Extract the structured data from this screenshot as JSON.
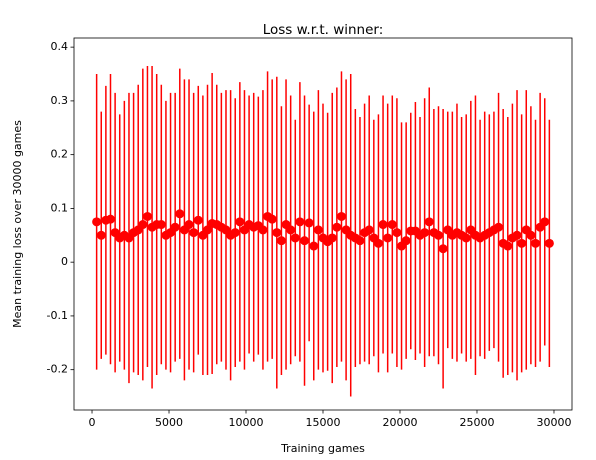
{
  "chart_data": {
    "type": "errorbar",
    "title": "Loss w.r.t. winner:",
    "xlabel": "Training games",
    "ylabel": "Mean training loss over 30000 games",
    "color": "#ff0000",
    "x": [
      300,
      600,
      900,
      1200,
      1500,
      1800,
      2100,
      2400,
      2700,
      3000,
      3300,
      3600,
      3900,
      4200,
      4500,
      4800,
      5100,
      5400,
      5700,
      6000,
      6300,
      6600,
      6900,
      7200,
      7500,
      7800,
      8100,
      8400,
      8700,
      9000,
      9300,
      9600,
      9900,
      10200,
      10500,
      10800,
      11100,
      11400,
      11700,
      12000,
      12300,
      12600,
      12900,
      13200,
      13500,
      13800,
      14100,
      14400,
      14700,
      15000,
      15300,
      15600,
      15900,
      16200,
      16500,
      16800,
      17100,
      17400,
      17700,
      18000,
      18300,
      18600,
      18900,
      19200,
      19500,
      19800,
      20100,
      20400,
      20700,
      21000,
      21300,
      21600,
      21900,
      22200,
      22500,
      22800,
      23100,
      23400,
      23700,
      24000,
      24300,
      24600,
      24900,
      25200,
      25500,
      25800,
      26100,
      26400,
      26700,
      27000,
      27300,
      27600,
      27900,
      28200,
      28500,
      28800,
      29100,
      29400,
      29700
    ],
    "values": [
      0.075,
      0.05,
      0.078,
      0.08,
      0.055,
      0.045,
      0.05,
      0.045,
      0.055,
      0.06,
      0.07,
      0.085,
      0.065,
      0.07,
      0.07,
      0.05,
      0.055,
      0.065,
      0.09,
      0.06,
      0.07,
      0.055,
      0.078,
      0.05,
      0.06,
      0.072,
      0.07,
      0.065,
      0.06,
      0.05,
      0.055,
      0.075,
      0.06,
      0.07,
      0.065,
      0.068,
      0.06,
      0.085,
      0.08,
      0.055,
      0.04,
      0.07,
      0.06,
      0.045,
      0.075,
      0.04,
      0.073,
      0.03,
      0.06,
      0.045,
      0.038,
      0.045,
      0.065,
      0.085,
      0.06,
      0.05,
      0.045,
      0.04,
      0.055,
      0.06,
      0.045,
      0.035,
      0.07,
      0.045,
      0.07,
      0.055,
      0.03,
      0.04,
      0.058,
      0.058,
      0.05,
      0.055,
      0.075,
      0.055,
      0.05,
      0.025,
      0.06,
      0.05,
      0.055,
      0.05,
      0.045,
      0.06,
      0.05,
      0.045,
      0.05,
      0.055,
      0.06,
      0.065,
      0.035,
      0.03,
      0.045,
      0.05,
      0.035,
      0.06,
      0.05,
      0.035,
      0.065,
      0.075,
      0.035
    ],
    "errors": [
      0.275,
      0.23,
      0.25,
      0.27,
      0.26,
      0.23,
      0.25,
      0.27,
      0.26,
      0.27,
      0.29,
      0.28,
      0.3,
      0.28,
      0.26,
      0.25,
      0.26,
      0.25,
      0.27,
      0.28,
      0.27,
      0.26,
      0.25,
      0.26,
      0.27,
      0.28,
      0.26,
      0.25,
      0.26,
      0.27,
      0.25,
      0.26,
      0.26,
      0.24,
      0.25,
      0.24,
      0.26,
      0.27,
      0.26,
      0.29,
      0.25,
      0.27,
      0.25,
      0.22,
      0.26,
      0.27,
      0.22,
      0.25,
      0.26,
      0.25,
      0.24,
      0.27,
      0.26,
      0.27,
      0.28,
      0.3,
      0.24,
      0.23,
      0.24,
      0.25,
      0.22,
      0.24,
      0.24,
      0.25,
      0.24,
      0.25,
      0.23,
      0.22,
      0.22,
      0.24,
      0.22,
      0.25,
      0.25,
      0.23,
      0.24,
      0.26,
      0.22,
      0.23,
      0.24,
      0.22,
      0.23,
      0.24,
      0.26,
      0.22,
      0.23,
      0.22,
      0.22,
      0.25,
      0.25,
      0.24,
      0.25,
      0.27,
      0.24,
      0.26,
      0.24,
      0.23,
      0.25,
      0.23,
      0.23
    ],
    "xlim": [
      -1170,
      31170
    ],
    "xticks": [
      0,
      5000,
      10000,
      15000,
      20000,
      25000,
      30000
    ],
    "ylim": [
      -0.275,
      0.417
    ],
    "yticks": [
      -0.2,
      -0.1,
      0.0,
      0.1,
      0.2,
      0.3,
      0.4
    ],
    "grid": false
  }
}
